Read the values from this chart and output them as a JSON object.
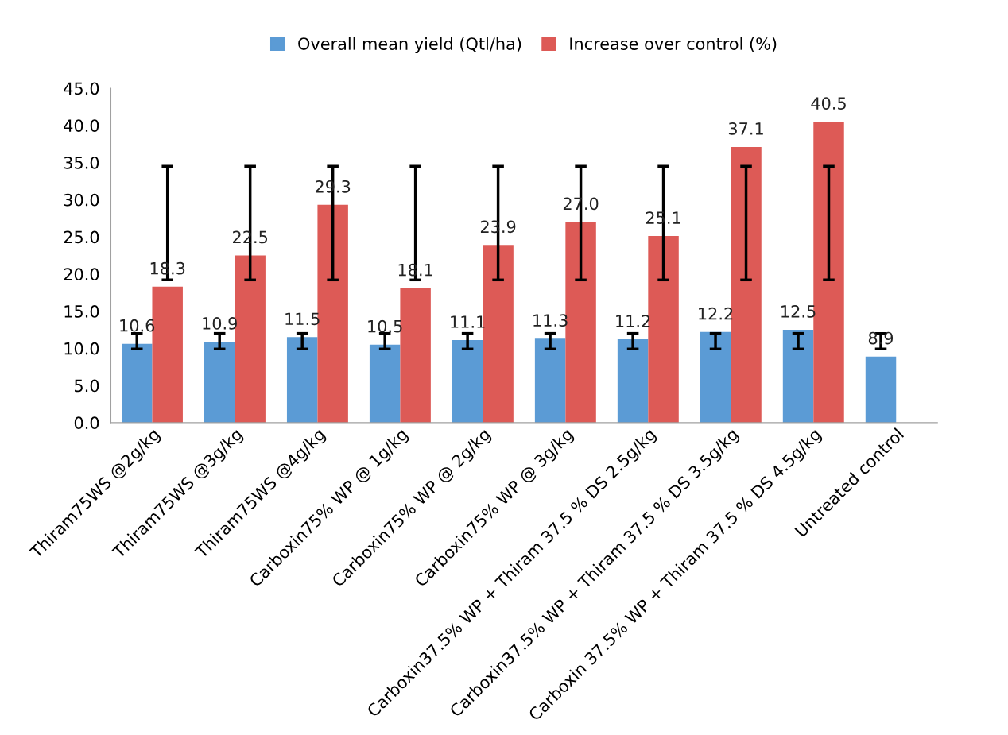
{
  "chart_data": {
    "type": "bar",
    "categories": [
      "Thiram75WS @2g/kg",
      "Thiram75WS @3g/kg",
      "Thiram75WS @4g/kg",
      "Carboxin75% WP @ 1g/kg",
      "Carboxin75% WP @ 2g/kg",
      "Carboxin75% WP @ 3g/kg",
      "Carboxin37.5% WP + Thiram 37.5 % DS 2.5g/kg",
      "Carboxin37.5% WP + Thiram 37.5 % DS 3.5g/kg",
      "Carboxin 37.5% WP + Thiram 37.5 % DS 4.5g/kg",
      "Untreated control"
    ],
    "series": [
      {
        "name": "Overall mean yield (Qtl/ha)",
        "color": "#5b9bd5",
        "values": [
          10.6,
          10.9,
          11.5,
          10.5,
          11.1,
          11.3,
          11.2,
          12.2,
          12.5,
          8.9
        ],
        "value_labels": [
          "10.6",
          "10.9",
          "11.5",
          "10.5",
          "11.1",
          "11.3",
          "11.2",
          "12.2",
          "12.5",
          "8.9"
        ],
        "errors": [
          [
            9.9,
            12.0
          ],
          [
            9.9,
            12.0
          ],
          [
            9.9,
            12.0
          ],
          [
            9.9,
            12.0
          ],
          [
            9.9,
            12.0
          ],
          [
            9.9,
            12.0
          ],
          [
            9.9,
            12.0
          ],
          [
            9.9,
            12.0
          ],
          [
            9.9,
            12.0
          ],
          [
            9.9,
            12.0
          ]
        ]
      },
      {
        "name": "Increase over control (%)",
        "color": "#dd5a56",
        "values": [
          18.3,
          22.5,
          29.3,
          18.1,
          23.9,
          27.0,
          25.1,
          37.1,
          40.5,
          null
        ],
        "value_labels": [
          "18.3",
          "22.5",
          "29.3",
          "18.1",
          "23.9",
          "27.0",
          "25.1",
          "37.1",
          "40.5",
          null
        ],
        "errors": [
          [
            19.2,
            34.5
          ],
          [
            19.2,
            34.5
          ],
          [
            19.2,
            34.5
          ],
          [
            19.2,
            34.5
          ],
          [
            19.2,
            34.5
          ],
          [
            19.2,
            34.5
          ],
          [
            19.2,
            34.5
          ],
          [
            19.2,
            34.5
          ],
          [
            19.2,
            34.5
          ],
          null
        ]
      }
    ],
    "ylim": [
      0,
      45
    ],
    "yticks": [
      {
        "value": 0,
        "label": "0.0"
      },
      {
        "value": 5,
        "label": "5.0"
      },
      {
        "value": 10,
        "label": "10.0"
      },
      {
        "value": 15,
        "label": "15.0"
      },
      {
        "value": 20,
        "label": "20.0"
      },
      {
        "value": 25,
        "label": "25.0"
      },
      {
        "value": 30,
        "label": "30.0"
      },
      {
        "value": 35,
        "label": "35.0"
      },
      {
        "value": 40,
        "label": "40.0"
      },
      {
        "value": 45,
        "label": "45.0"
      }
    ],
    "grid": false,
    "legend": "top"
  }
}
